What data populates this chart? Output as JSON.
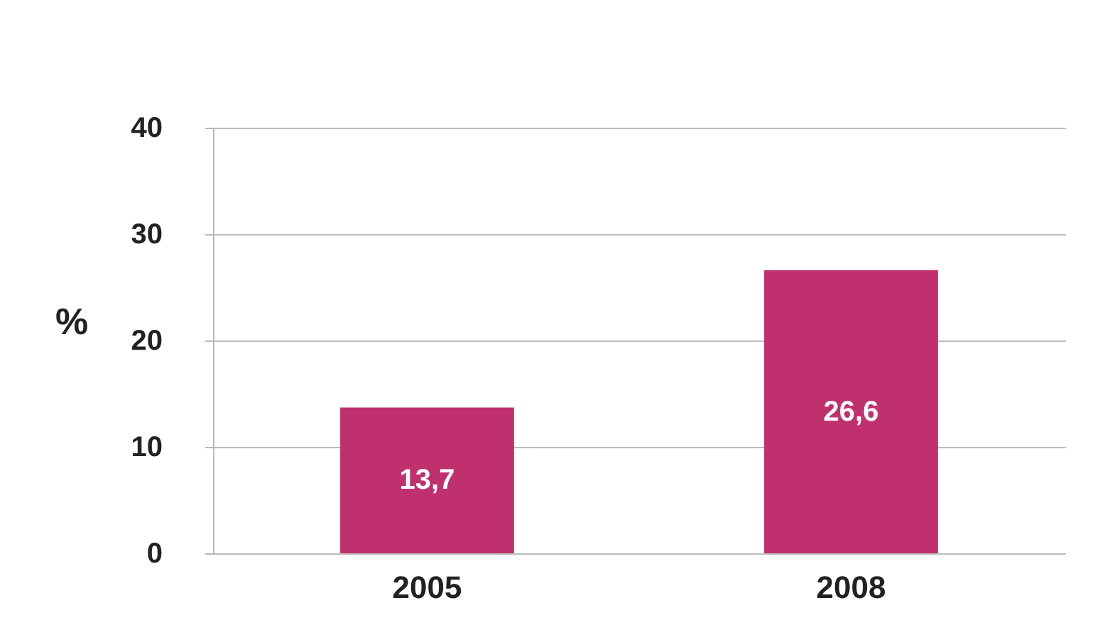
{
  "chart_data": {
    "type": "bar",
    "ylabel": "%",
    "categories": [
      "2005",
      "2008"
    ],
    "values": [
      13.7,
      26.6
    ],
    "value_labels": [
      "13,7",
      "26,6"
    ],
    "color": "#c0306e",
    "ylim": [
      0,
      40
    ],
    "yticks": [
      0,
      10,
      20,
      30,
      40
    ],
    "grid": "y"
  }
}
